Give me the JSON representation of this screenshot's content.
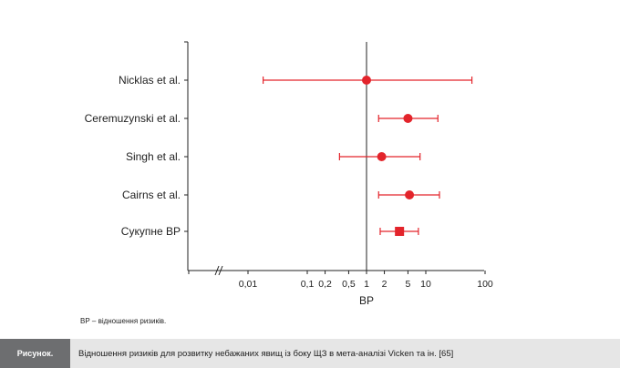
{
  "chart_data": {
    "type": "forest",
    "x_scale": "log",
    "xlabel": "ВР",
    "xlim": [
      0.0015,
      100
    ],
    "reference_line": 1,
    "tick_values": [
      0.01,
      0.1,
      0.2,
      0.5,
      1,
      2,
      5,
      10,
      100
    ],
    "tick_labels": [
      "0,01",
      "0,1",
      "0,2",
      "0,5",
      "1",
      "2",
      "5",
      "10",
      "100"
    ],
    "studies": [
      {
        "label": "Nicklas et al.",
        "estimate": 1.0,
        "ci_low": 0.018,
        "ci_high": 60,
        "marker": "circle"
      },
      {
        "label": "Ceremuzynski et al.",
        "estimate": 5.0,
        "ci_low": 1.6,
        "ci_high": 16,
        "marker": "circle"
      },
      {
        "label": "Singh et al.",
        "estimate": 1.8,
        "ci_low": 0.35,
        "ci_high": 8,
        "marker": "circle"
      },
      {
        "label": "Cairns et al.",
        "estimate": 5.3,
        "ci_low": 1.6,
        "ci_high": 17,
        "marker": "circle"
      },
      {
        "label": "Сукупне ВР",
        "estimate": 3.6,
        "ci_low": 1.7,
        "ci_high": 7.5,
        "marker": "square"
      }
    ],
    "colors": {
      "marker": "#e3242b",
      "axis": "#222222"
    }
  },
  "note": "ВР – відношення ризиків.",
  "caption": {
    "tag": "Рисунок.",
    "text": "Відношення ризиків для розвитку небажаних явищ із боку ЩЗ в мета-аналізі Vicken та ін. [65]"
  }
}
